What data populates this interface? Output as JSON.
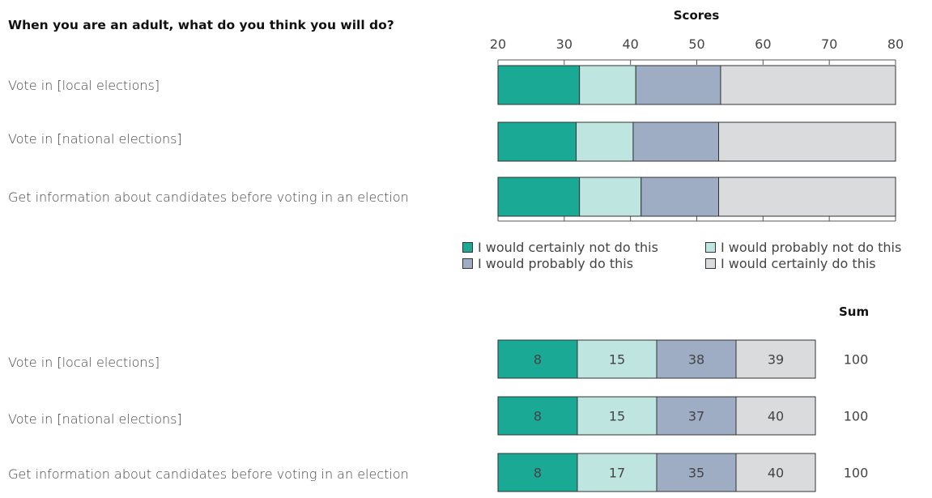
{
  "question": "When you are an adult, what do you think you will do?",
  "colors": {
    "certainly_not": "#1aa994",
    "probably_not": "#bfe5e0",
    "probably": "#9eacc4",
    "certainly": "#dadbdd"
  },
  "legend": [
    {
      "key": "certainly_not",
      "label": "I would certainly not do this"
    },
    {
      "key": "probably_not",
      "label": "I would probably not do this"
    },
    {
      "key": "probably",
      "label": "I would probably do this"
    },
    {
      "key": "certainly",
      "label": "I would certainly do this"
    }
  ],
  "sum_title": "Sum",
  "chart_data": [
    {
      "type": "bar",
      "orientation": "horizontal-stacked",
      "title": "",
      "xlabel": "Scores",
      "xlim": [
        20,
        80
      ],
      "xticks": [
        "20",
        "30",
        "40",
        "50",
        "60",
        "70",
        "80"
      ],
      "categories": [
        "Vote in [local elections]",
        "Vote in [national elections]",
        "Get information about candidates before voting in an election"
      ],
      "series": [
        {
          "name": "I would certainly not do this",
          "key": "certainly_not",
          "start": [
            20,
            20,
            20
          ],
          "end": [
            32.3,
            31.8,
            32.3
          ]
        },
        {
          "name": "I would probably not do this",
          "key": "probably_not",
          "start": [
            32.3,
            31.8,
            32.3
          ],
          "end": [
            40.8,
            40.4,
            41.6
          ]
        },
        {
          "name": "I would probably do this",
          "key": "probably",
          "start": [
            40.8,
            40.4,
            41.6
          ],
          "end": [
            53.6,
            53.3,
            53.3
          ]
        },
        {
          "name": "I would certainly do this",
          "key": "certainly",
          "start": [
            53.6,
            53.3,
            53.3
          ],
          "end": [
            80,
            80,
            80
          ]
        }
      ],
      "grid": false,
      "legend_position": "bottom"
    },
    {
      "type": "table",
      "categories": [
        "Vote in [local elections]",
        "Vote in [national elections]",
        "Get information about candidates before voting in an election"
      ],
      "series": [
        {
          "name": "I would certainly not do this",
          "key": "certainly_not",
          "values": [
            8,
            8,
            8
          ]
        },
        {
          "name": "I would probably not do this",
          "key": "probably_not",
          "values": [
            15,
            15,
            17
          ]
        },
        {
          "name": "I would probably do this",
          "key": "probably",
          "values": [
            38,
            37,
            35
          ]
        },
        {
          "name": "I would certainly do this",
          "key": "certainly",
          "values": [
            39,
            40,
            40
          ]
        }
      ],
      "sum": [
        100,
        100,
        100
      ]
    }
  ]
}
